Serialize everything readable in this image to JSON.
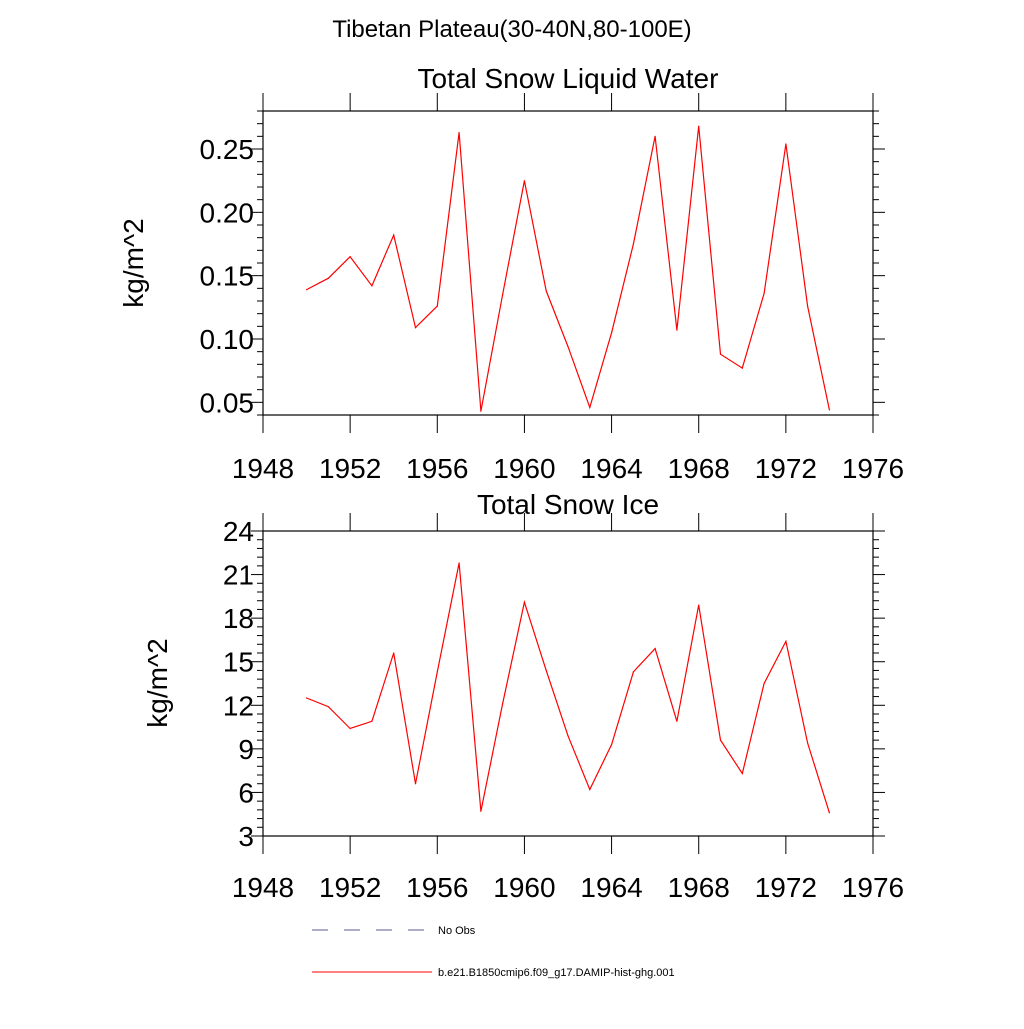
{
  "figure": {
    "title": "Tibetan Plateau(30-40N,80-100E)"
  },
  "colors": {
    "series": "#ff0000",
    "no_obs": "#5a5a9a",
    "axis": "#000000"
  },
  "legend": {
    "items": [
      {
        "label": "No Obs",
        "style": "dashed"
      },
      {
        "label": "b.e21.B1850cmip6.f09_g17.DAMIP-hist-ghg.001",
        "style": "solid"
      }
    ]
  },
  "chart_data": [
    {
      "type": "line",
      "title": "Total Snow Liquid Water",
      "xlabel": "",
      "ylabel": "kg/m^2",
      "xlim": [
        1948,
        1976
      ],
      "ylim": [
        0.04,
        0.28
      ],
      "xticks": [
        1948,
        1952,
        1956,
        1960,
        1964,
        1968,
        1972,
        1976
      ],
      "xtick_labels": [
        "1948",
        "1952",
        "1956",
        "1960",
        "1964",
        "1968",
        "1972",
        "1976"
      ],
      "yticks": [
        0.05,
        0.1,
        0.15,
        0.2,
        0.25
      ],
      "ytick_labels": [
        "0.05",
        "0.10",
        "0.15",
        "0.20",
        "0.25"
      ],
      "series": [
        {
          "name": "b.e21.B1850cmip6.f09_g17.DAMIP-hist-ghg.001",
          "x": [
            1950,
            1951,
            1952,
            1953,
            1954,
            1955,
            1956,
            1957,
            1958,
            1959,
            1960,
            1961,
            1962,
            1963,
            1964,
            1965,
            1966,
            1967,
            1968,
            1969,
            1970,
            1971,
            1972,
            1973,
            1974
          ],
          "values": [
            0.139,
            0.148,
            0.165,
            0.142,
            0.182,
            0.109,
            0.126,
            0.263,
            0.043,
            0.135,
            0.225,
            0.138,
            0.094,
            0.046,
            0.105,
            0.175,
            0.26,
            0.107,
            0.268,
            0.088,
            0.077,
            0.136,
            0.254,
            0.126,
            0.044
          ]
        }
      ]
    },
    {
      "type": "line",
      "title": "Total Snow Ice",
      "xlabel": "",
      "ylabel": "kg/m^2",
      "xlim": [
        1948,
        1976
      ],
      "ylim": [
        3,
        24
      ],
      "xticks": [
        1948,
        1952,
        1956,
        1960,
        1964,
        1968,
        1972,
        1976
      ],
      "xtick_labels": [
        "1948",
        "1952",
        "1956",
        "1960",
        "1964",
        "1968",
        "1972",
        "1976"
      ],
      "yticks": [
        3,
        6,
        9,
        12,
        15,
        18,
        21,
        24
      ],
      "ytick_labels": [
        "3",
        "6",
        "9",
        "12",
        "15",
        "18",
        "21",
        "24"
      ],
      "series": [
        {
          "name": "b.e21.B1850cmip6.f09_g17.DAMIP-hist-ghg.001",
          "x": [
            1950,
            1951,
            1952,
            1953,
            1954,
            1955,
            1956,
            1957,
            1958,
            1959,
            1960,
            1961,
            1962,
            1963,
            1964,
            1965,
            1966,
            1967,
            1968,
            1969,
            1970,
            1971,
            1972,
            1973,
            1974
          ],
          "values": [
            12.5,
            11.9,
            10.4,
            10.9,
            15.6,
            6.6,
            14.3,
            21.8,
            4.7,
            12.1,
            19.1,
            14.4,
            9.9,
            6.2,
            9.3,
            14.3,
            15.9,
            10.9,
            18.9,
            9.6,
            7.3,
            13.5,
            16.4,
            9.4,
            4.6
          ]
        }
      ]
    }
  ]
}
